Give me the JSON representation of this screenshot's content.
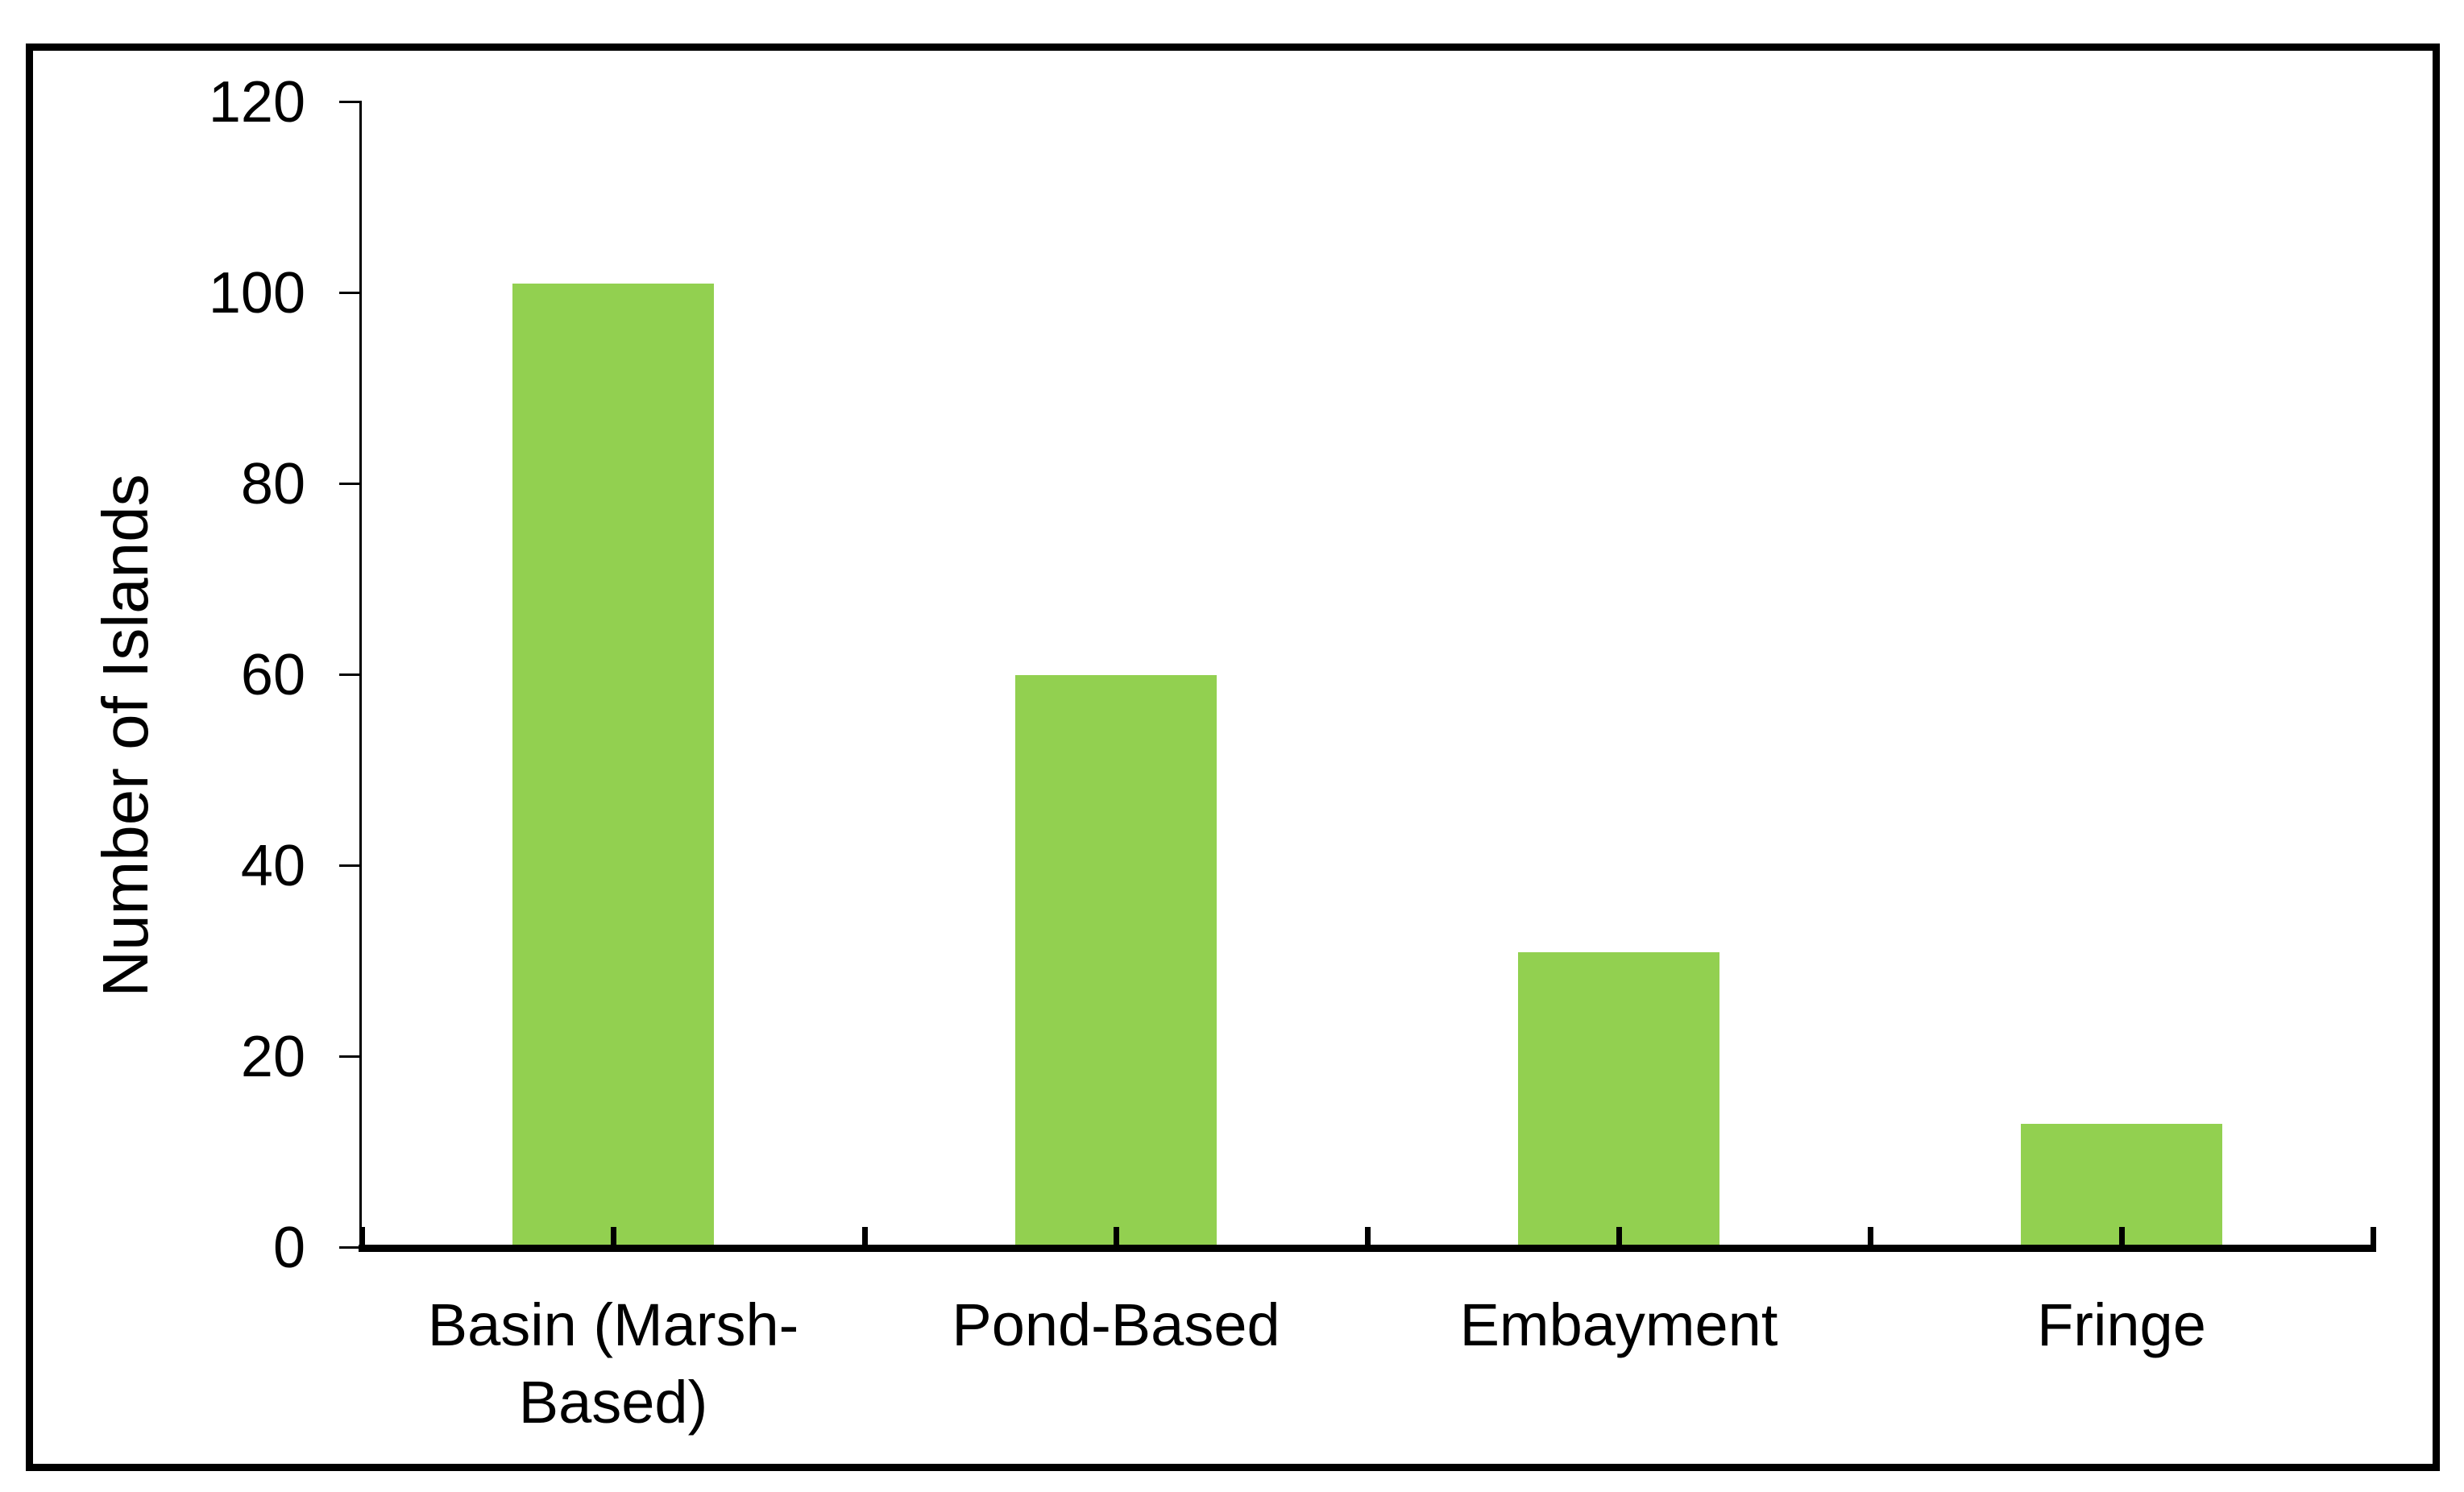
{
  "chart_data": {
    "type": "bar",
    "title": "",
    "categories": [
      "Basin (Marsh-Based)",
      "Pond-Based",
      "Embayment",
      "Fringe"
    ],
    "category_display": [
      "Basin (Marsh-\nBased)",
      "Pond-Based",
      "Embayment",
      "Fringe"
    ],
    "values": [
      101,
      60,
      31,
      13
    ],
    "xlabel": "",
    "ylabel": "Number of Islands",
    "ylim": [
      0,
      120
    ],
    "yticks": [
      0,
      20,
      40,
      60,
      80,
      100,
      120
    ],
    "grid": false,
    "legend": false,
    "bar_color": "#92D050",
    "axis_color": "#000000",
    "text_color": "#000000",
    "background_color": "#FFFFFF",
    "frame_border_color": "#000000"
  }
}
